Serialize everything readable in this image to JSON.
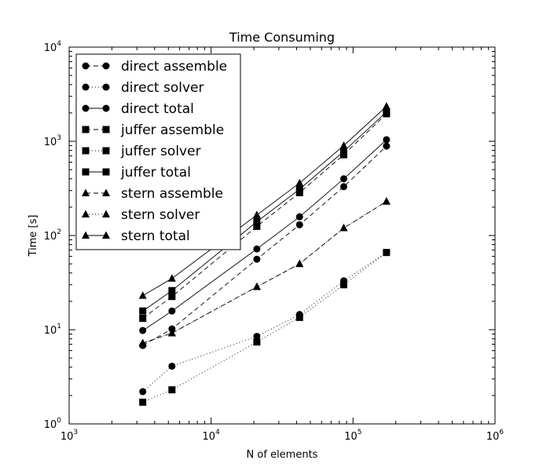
{
  "chart_data": {
    "type": "line",
    "title": "Time Consuming",
    "xlabel": "N of elements",
    "ylabel": "Time [s]",
    "xscale": "log",
    "yscale": "log",
    "xlim": [
      1000,
      1000000
    ],
    "ylim": [
      1,
      10000
    ],
    "x_ticks": [
      {
        "base": "10",
        "exp": "3"
      },
      {
        "base": "10",
        "exp": "4"
      },
      {
        "base": "10",
        "exp": "5"
      },
      {
        "base": "10",
        "exp": "6"
      }
    ],
    "y_ticks": [
      {
        "base": "10",
        "exp": "0"
      },
      {
        "base": "10",
        "exp": "1"
      },
      {
        "base": "10",
        "exp": "2"
      },
      {
        "base": "10",
        "exp": "3"
      },
      {
        "base": "10",
        "exp": "4"
      }
    ],
    "grid": false,
    "legend_position": "top-left",
    "x": [
      3300,
      5300,
      21000,
      42000,
      86000,
      172000
    ],
    "series": [
      {
        "name": "direct assemble",
        "marker": "circle",
        "linestyle": "dashed",
        "values": [
          6.8,
          10.2,
          56,
          130,
          330,
          890
        ]
      },
      {
        "name": "direct solver",
        "marker": "circle",
        "linestyle": "dotted",
        "values": [
          2.2,
          4.1,
          8.5,
          14.5,
          33,
          66
        ]
      },
      {
        "name": "direct total",
        "marker": "circle",
        "linestyle": "solid",
        "values": [
          9.8,
          15.8,
          72,
          158,
          400,
          1040
        ]
      },
      {
        "name": "juffer assemble",
        "marker": "square",
        "linestyle": "dashed",
        "values": [
          13.2,
          22.5,
          125,
          285,
          720,
          1960
        ]
      },
      {
        "name": "juffer solver",
        "marker": "square",
        "linestyle": "dotted",
        "values": [
          1.7,
          2.3,
          7.4,
          13.5,
          30,
          66
        ]
      },
      {
        "name": "juffer total",
        "marker": "square",
        "linestyle": "solid",
        "values": [
          15.8,
          26,
          140,
          310,
          780,
          2050
        ]
      },
      {
        "name": "stern assemble",
        "marker": "triangle",
        "linestyle": "dashed",
        "values": [
          7.2,
          9.2,
          28.5,
          50,
          120,
          230
        ]
      },
      {
        "name": "stern solver",
        "marker": "triangle",
        "linestyle": "dotted",
        "values": [
          7.2,
          9.2,
          28.5,
          50,
          120,
          230
        ]
      },
      {
        "name": "stern total",
        "marker": "triangle",
        "linestyle": "solid",
        "values": [
          23,
          35,
          165,
          360,
          900,
          2350
        ]
      }
    ]
  }
}
